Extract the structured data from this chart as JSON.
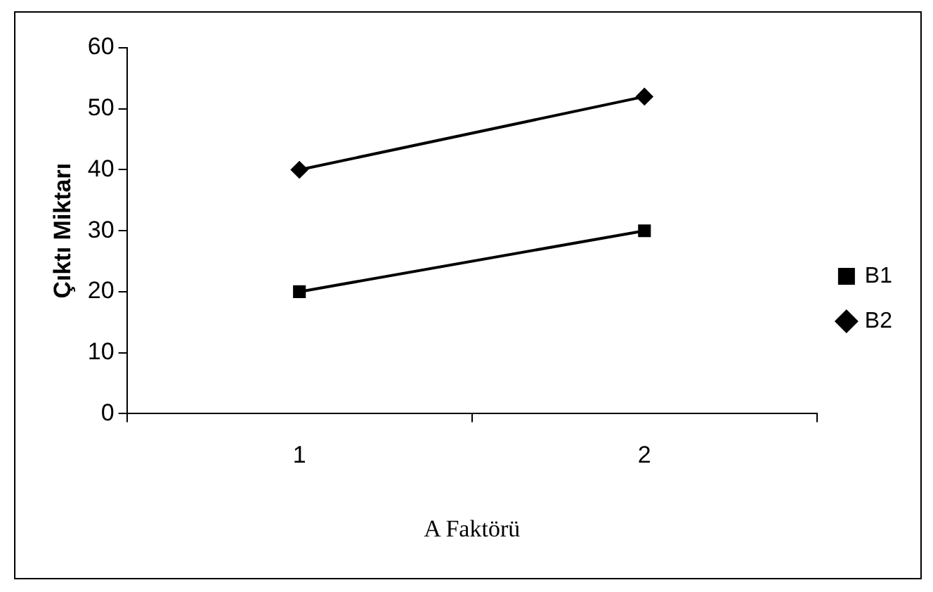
{
  "chart_data": {
    "type": "line",
    "xlabel": "A Faktörü",
    "ylabel": "Çıktı Miktarı",
    "categories": [
      "1",
      "2"
    ],
    "series": [
      {
        "name": "B1",
        "color": "#000000",
        "values": [
          20,
          30
        ],
        "marker": "square"
      },
      {
        "name": "B2",
        "color": "#000000",
        "values": [
          40,
          52
        ],
        "marker": "diamond"
      }
    ],
    "ylim": [
      0,
      60
    ],
    "yticks": [
      0,
      10,
      20,
      30,
      40,
      50,
      60
    ],
    "grid": false,
    "legend": "right",
    "line_style": "solid"
  }
}
